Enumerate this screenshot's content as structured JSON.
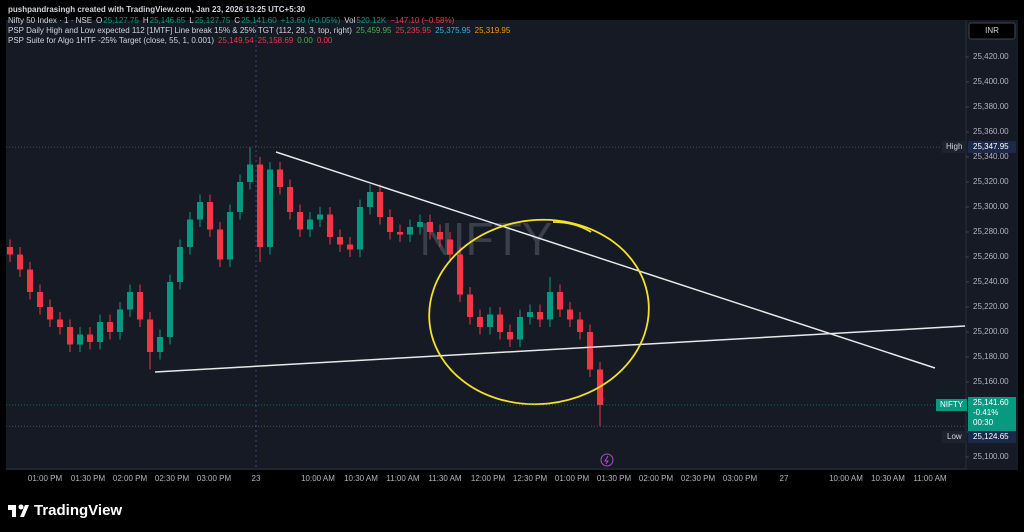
{
  "chart_data": {
    "type": "candlestick",
    "caption": "pushpandrasingh created with TradingView.com, Jan 23, 2026 13:25 UTC+5:30",
    "legend": [
      {
        "title": "Nifty 50 Index · 1 · NSE",
        "items": [
          {
            "label": "O",
            "text": "25,127.75",
            "color": "#089981"
          },
          {
            "label": "H",
            "text": "25,146.65",
            "color": "#089981"
          },
          {
            "label": "L",
            "text": "25,127.75",
            "color": "#089981"
          },
          {
            "label": "C",
            "text": "25,141.60",
            "color": "#089981"
          },
          {
            "text": "+13.60 (+0.05%)",
            "color": "#089981"
          },
          {
            "label": "Vol",
            "text": "520.12K",
            "color": "#089981"
          },
          {
            "text": "−147.10 (−0.58%)",
            "color": "#f23645"
          }
        ]
      },
      {
        "title": "PSP Daily High and Low expected 112 [1MTF] Line break 15% & 25% TGT (112, 28, 3, top, right)",
        "items": [
          {
            "text": "25,459.95",
            "color": "#4caf50"
          },
          {
            "text": "25,235.95",
            "color": "#f23645"
          },
          {
            "text": "25,375.95",
            "color": "#2ab7e6"
          },
          {
            "text": "25,319.95",
            "color": "#ff9800"
          }
        ]
      },
      {
        "title": "PSP Suite for Algo 1HTF -25% Target (close, 55, 1, 0.001)",
        "items": [
          {
            "text": "25,149.54",
            "color": "#f23645"
          },
          {
            "text": "25,158.69",
            "color": "#f23645"
          },
          {
            "text": "0.00",
            "color": "#4caf50"
          },
          {
            "text": "0.00",
            "color": "#f23645"
          }
        ]
      }
    ],
    "watermark": "NIFTY",
    "currency": "INR",
    "x_labels": [
      "01:00 PM",
      "01:30 PM",
      "02:00 PM",
      "02:30 PM",
      "03:00 PM",
      "23",
      "10:00 AM",
      "10:30 AM",
      "11:00 AM",
      "11:30 AM",
      "12:00 PM",
      "12:30 PM",
      "01:00 PM",
      "01:30 PM",
      "02:00 PM",
      "02:30 PM",
      "03:00 PM",
      "27",
      "10:00 AM",
      "10:30 AM",
      "11:00 AM"
    ],
    "ylim": [
      25090,
      25450
    ],
    "yticks": [
      {
        "value": 25100,
        "label": "25,100.00"
      },
      {
        "value": 25120,
        "label": "25,120.00"
      },
      {
        "value": 25140,
        "label": "25,140.00"
      },
      {
        "value": 25160,
        "label": "25,160.00"
      },
      {
        "value": 25180,
        "label": "25,180.00"
      },
      {
        "value": 25200,
        "label": "25,200.00"
      },
      {
        "value": 25220,
        "label": "25,220.00"
      },
      {
        "value": 25240,
        "label": "25,240.00"
      },
      {
        "value": 25260,
        "label": "25,260.00"
      },
      {
        "value": 25280,
        "label": "25,280.00"
      },
      {
        "value": 25300,
        "label": "25,300.00"
      },
      {
        "value": 25320,
        "label": "25,320.00"
      },
      {
        "value": 25340,
        "label": "25,340.00"
      },
      {
        "value": 25360,
        "label": "25,360.00"
      },
      {
        "value": 25380,
        "label": "25,380.00"
      },
      {
        "value": 25400,
        "label": "25,400.00"
      },
      {
        "value": 25420,
        "label": "25,420.00"
      }
    ],
    "up_color": "#089981",
    "down_color": "#f23645",
    "open": [
      25268,
      25262,
      25250,
      25232,
      25220,
      25210,
      25204,
      25190,
      25198,
      25192,
      25208,
      25200,
      25218,
      25232,
      25210,
      25184,
      25196,
      25240,
      25268,
      25290,
      25304,
      25282,
      25258,
      25296,
      25320,
      25334,
      25268,
      25330,
      25316,
      25296,
      25282,
      25290,
      25294,
      25276,
      25270,
      25266,
      25300,
      25312,
      25292,
      25280,
      25278,
      25284,
      25288,
      25280,
      25274,
      25262,
      25230,
      25212,
      25204,
      25214,
      25200,
      25194,
      25212,
      25216,
      25210,
      25232,
      25218,
      25210,
      25200,
      25170
    ],
    "high": [
      25274,
      25268,
      25256,
      25238,
      25226,
      25216,
      25210,
      25204,
      25204,
      25214,
      25214,
      25224,
      25238,
      25238,
      25216,
      25202,
      25246,
      25274,
      25296,
      25310,
      25310,
      25288,
      25302,
      25326,
      25347.95,
      25340,
      25336,
      25336,
      25322,
      25302,
      25296,
      25300,
      25300,
      25282,
      25276,
      25306,
      25318,
      25318,
      25298,
      25286,
      25290,
      25294,
      25294,
      25286,
      25280,
      25268,
      25236,
      25218,
      25220,
      25220,
      25206,
      25218,
      25222,
      25222,
      25244,
      25238,
      25224,
      25216,
      25206,
      25176
    ],
    "low": [
      25256,
      25244,
      25226,
      25214,
      25204,
      25198,
      25184,
      25184,
      25186,
      25186,
      25194,
      25194,
      25212,
      25204,
      25170,
      25178,
      25190,
      25234,
      25262,
      25284,
      25276,
      25252,
      25252,
      25290,
      25314,
      25256,
      25262,
      25310,
      25290,
      25276,
      25276,
      25284,
      25270,
      25264,
      25260,
      25260,
      25294,
      25286,
      25274,
      25272,
      25272,
      25278,
      25274,
      25268,
      25256,
      25224,
      25206,
      25198,
      25198,
      25194,
      25188,
      25188,
      25206,
      25204,
      25204,
      25212,
      25204,
      25194,
      25164,
      25124.65
    ],
    "close": [
      25262,
      25250,
      25232,
      25220,
      25210,
      25204,
      25190,
      25198,
      25192,
      25208,
      25200,
      25218,
      25232,
      25210,
      25184,
      25196,
      25240,
      25268,
      25290,
      25304,
      25282,
      25258,
      25296,
      25320,
      25334,
      25268,
      25330,
      25316,
      25296,
      25282,
      25290,
      25294,
      25276,
      25270,
      25266,
      25300,
      25312,
      25292,
      25280,
      25278,
      25284,
      25288,
      25280,
      25274,
      25262,
      25230,
      25212,
      25204,
      25214,
      25200,
      25194,
      25212,
      25216,
      25210,
      25232,
      25218,
      25210,
      25200,
      25170,
      25141.6
    ],
    "high_marker": {
      "label": "High",
      "value": 25347.95,
      "text": "25,347.95"
    },
    "low_marker": {
      "label": "Low",
      "value": 25124.65,
      "text": "25,124.65"
    },
    "last_price": {
      "symbol": "NIFTY",
      "value": 25141.6,
      "text": "25,141.60",
      "change": "-0.41%",
      "countdown": "00:30"
    },
    "brand": "TradingView"
  }
}
